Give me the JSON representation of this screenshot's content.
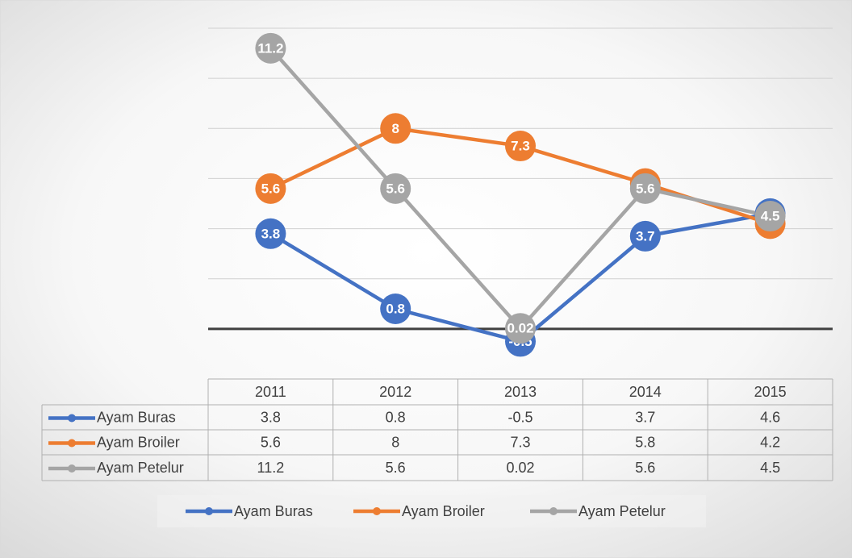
{
  "chart_data": {
    "type": "line",
    "categories": [
      "2011",
      "2012",
      "2013",
      "2014",
      "2015"
    ],
    "series": [
      {
        "name": "Ayam Buras",
        "color": "#4472c4",
        "values": [
          3.8,
          0.8,
          -0.5,
          3.7,
          4.6
        ]
      },
      {
        "name": "Ayam Broiler",
        "color": "#ed7d31",
        "values": [
          5.6,
          8,
          7.3,
          5.8,
          4.2
        ]
      },
      {
        "name": "Ayam Petelur",
        "color": "#a5a5a5",
        "values": [
          11.2,
          5.6,
          0.02,
          5.6,
          4.5
        ]
      }
    ],
    "ylim": [
      -2,
      12
    ],
    "yticks": [
      0,
      2,
      4,
      6,
      8,
      10,
      12
    ],
    "grid": true,
    "data_table": true,
    "legend": "bottom"
  }
}
